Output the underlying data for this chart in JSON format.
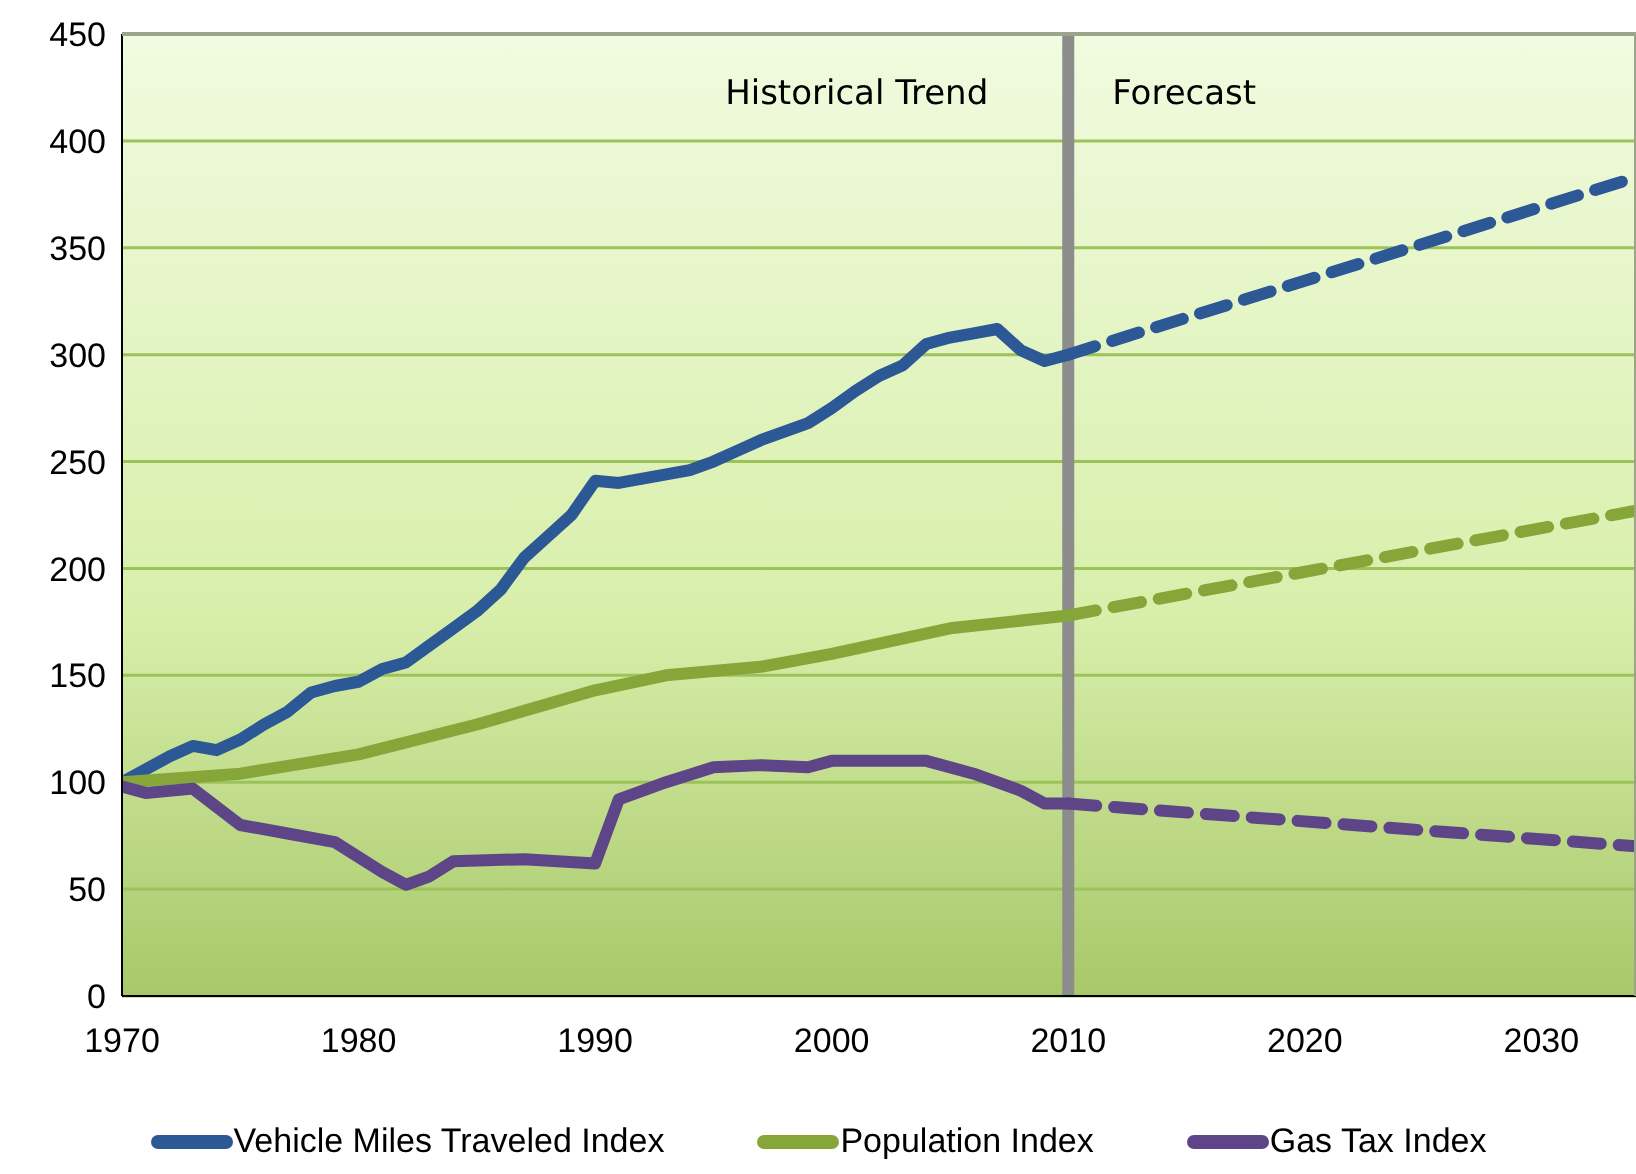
{
  "chart_data": {
    "type": "line",
    "xlim": [
      1970,
      2034
    ],
    "xticks": [
      1970,
      1980,
      1990,
      2000,
      2010,
      2020,
      2030
    ],
    "ylim": [
      0,
      450
    ],
    "yticks": [
      0,
      50,
      100,
      150,
      200,
      250,
      300,
      350,
      400,
      450
    ],
    "grid": "y",
    "legend": "bottom",
    "marker": "none",
    "annotations": [
      "Historical Trend",
      "Forecast"
    ],
    "ref_lines": [
      {
        "axis": "x",
        "value": 2010,
        "color": "#8c8c8c"
      }
    ],
    "series": [
      {
        "name": "Vehicle Miles Traveled Index",
        "color": "#2c5896",
        "line_style": "solid",
        "x": [
          1970,
          1972,
          1973,
          1974,
          1975,
          1976,
          1977,
          1978,
          1979,
          1980,
          1981,
          1982,
          1983,
          1984,
          1985,
          1986,
          1987,
          1988,
          1989,
          1990,
          1991,
          1992,
          1993,
          1994,
          1995,
          1996,
          1997,
          1998,
          1999,
          2000,
          2001,
          2002,
          2003,
          2004,
          2005,
          2006,
          2007,
          2008,
          2009,
          2010
        ],
        "values": [
          100,
          112,
          117,
          115,
          120,
          127,
          133,
          142,
          145,
          147,
          153,
          156,
          164,
          172,
          180,
          190,
          205,
          215,
          225,
          241,
          240,
          242,
          244,
          246,
          250,
          255,
          260,
          264,
          268,
          275,
          283,
          290,
          295,
          305,
          308,
          310,
          312,
          302,
          297,
          300
        ]
      },
      {
        "name": "Population Index",
        "color": "#87a63a",
        "line_style": "solid",
        "x": [
          1970,
          1975,
          1980,
          1985,
          1990,
          1993,
          1997,
          2000,
          2005,
          2010
        ],
        "values": [
          100,
          104,
          113,
          127,
          143,
          150,
          154,
          160,
          172,
          178
        ]
      },
      {
        "name": "Gas Tax Index",
        "color": "#5e4587",
        "line_style": "solid",
        "x": [
          1970,
          1971,
          1973,
          1975,
          1977,
          1979,
          1981,
          1982,
          1983,
          1984,
          1987,
          1990,
          1991,
          1993,
          1995,
          1997,
          1999,
          2000,
          2002,
          2004,
          2006,
          2008,
          2009,
          2010
        ],
        "values": [
          98,
          95,
          97,
          80,
          76,
          72,
          58,
          52,
          56,
          63,
          64,
          62,
          92,
          100,
          107,
          108,
          107,
          110,
          110,
          110,
          104,
          96,
          90,
          90
        ]
      },
      {
        "color": "#2c5896",
        "line_style": "dashed",
        "x": [
          2010,
          2034
        ],
        "values": [
          300,
          383
        ]
      },
      {
        "color": "#87a63a",
        "line_style": "dashed",
        "x": [
          2010,
          2034
        ],
        "values": [
          178,
          227
        ]
      },
      {
        "color": "#5e4587",
        "line_style": "dashed",
        "x": [
          2010,
          2034
        ],
        "values": [
          90,
          70
        ]
      }
    ]
  }
}
